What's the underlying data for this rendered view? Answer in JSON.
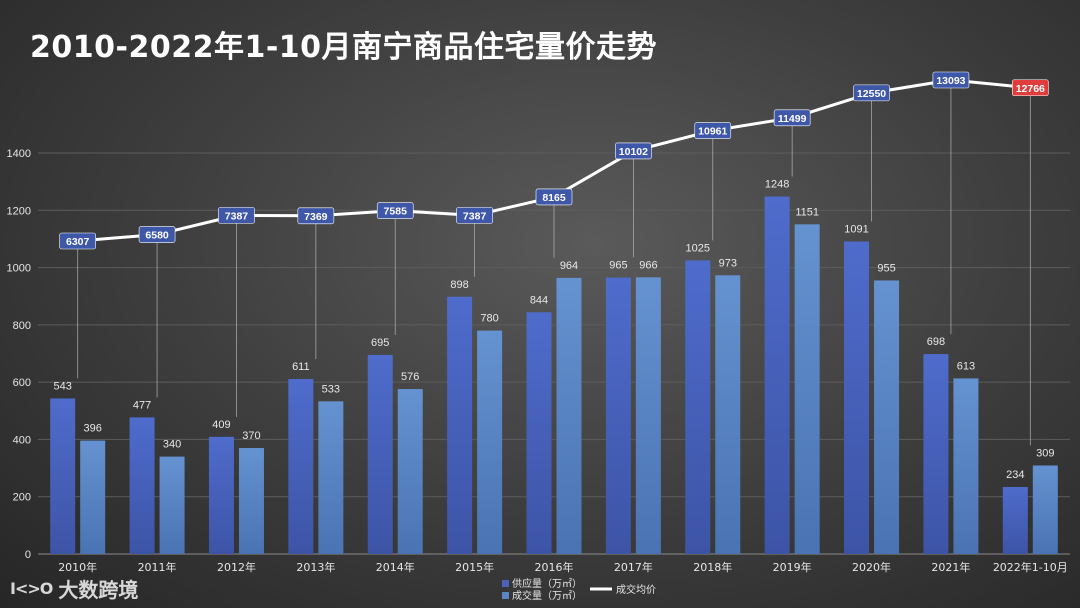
{
  "title": "2010-2022年1-10月南宁商品住宅量价走势",
  "brand": {
    "logo_text": "I<>O",
    "name": "大数跨境"
  },
  "colors": {
    "supply": "#4a63b8",
    "deal": "#5a86c4",
    "price_line": "#ffffff",
    "price_label_bg": "#3f57a8",
    "price_label_highlight": "#e03c3c",
    "axis_text": "#e6e6e6",
    "grid": "#5c5c5c"
  },
  "chart_data": {
    "type": "bar",
    "title": "2010-2022年1-10月南宁商品住宅量价走势",
    "categories": [
      "2010年",
      "2011年",
      "2012年",
      "2013年",
      "2014年",
      "2015年",
      "2016年",
      "2017年",
      "2018年",
      "2019年",
      "2020年",
      "2021年",
      "2022年1-10月"
    ],
    "y_ticks": [
      "0",
      "200",
      "400",
      "600",
      "800",
      "1000",
      "1200",
      "1400"
    ],
    "ylim": [
      0,
      1400
    ],
    "series": [
      {
        "name": "供应量（万㎡）",
        "kind": "bar",
        "values": [
          543,
          477,
          409,
          611,
          695,
          898,
          844,
          965,
          1025,
          1248,
          1091,
          698,
          234
        ]
      },
      {
        "name": "成交量（万㎡）",
        "kind": "bar",
        "values": [
          396,
          340,
          370,
          533,
          576,
          780,
          964,
          966,
          973,
          1151,
          955,
          613,
          309
        ]
      },
      {
        "name": "成交均价",
        "kind": "line",
        "values": [
          6307,
          6580,
          7387,
          7369,
          7585,
          7387,
          8165,
          10102,
          10961,
          11499,
          12550,
          13093,
          12766
        ]
      }
    ],
    "highlight_last_price": true,
    "legend": [
      "供应量（万㎡）",
      "成交量（万㎡）",
      "成交均价"
    ],
    "legend_position": "bottom",
    "grid": true
  }
}
